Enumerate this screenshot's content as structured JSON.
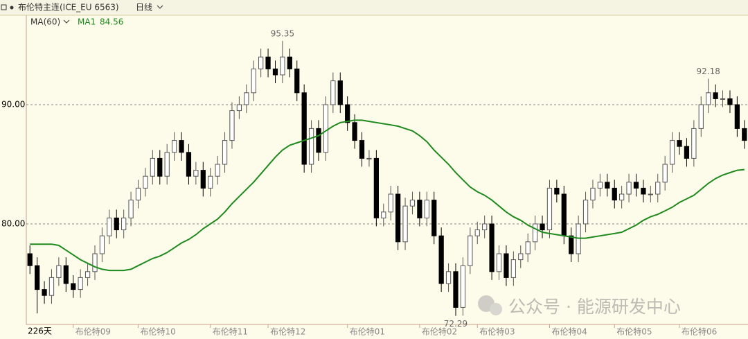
{
  "chart_data": {
    "type": "candlestick",
    "title": "布伦特主连(ICE_EU 6563)",
    "period": "日线",
    "indicator": "MA(60)",
    "bar_count": "226天",
    "watermark": "公众号 · 能源研发中心",
    "up_color": "#ffffff",
    "down_color": "#000000",
    "edge_color": "#555555",
    "grid": true,
    "ylim": [
      71.57,
      97.5
    ],
    "yticks": [
      {
        "value": 80,
        "label": "80.00"
      },
      {
        "value": 90,
        "label": "90.00"
      }
    ],
    "categories": [
      null,
      null,
      null,
      null,
      null,
      null,
      "布伦特09",
      null,
      null,
      null,
      null,
      null,
      null,
      null,
      null,
      "布伦特10",
      null,
      null,
      null,
      null,
      null,
      null,
      null,
      null,
      null,
      "布伦特11",
      null,
      null,
      null,
      null,
      null,
      null,
      null,
      "布伦特12",
      null,
      null,
      null,
      null,
      null,
      null,
      null,
      null,
      null,
      null,
      "布伦特01",
      null,
      null,
      null,
      null,
      null,
      null,
      null,
      null,
      null,
      "布伦特02",
      null,
      null,
      null,
      null,
      null,
      null,
      null,
      "布伦特03",
      null,
      null,
      null,
      null,
      null,
      null,
      null,
      null,
      null,
      "布伦特04",
      null,
      null,
      null,
      null,
      null,
      null,
      null,
      null,
      "布伦特05",
      null,
      null,
      null,
      null,
      null,
      null,
      null,
      null,
      "布伦特06",
      null,
      null,
      null,
      null,
      null,
      null,
      null,
      null,
      null
    ],
    "open": [
      77.5,
      76.5,
      74.5,
      74,
      75.5,
      76.5,
      75,
      74.5,
      75.5,
      76,
      77.5,
      79,
      80.5,
      79.5,
      80.5,
      82,
      83,
      84,
      85.5,
      84,
      86,
      87,
      86,
      84,
      84.5,
      83,
      84,
      85,
      87,
      89.5,
      90,
      91,
      93,
      94,
      93,
      92.5,
      94,
      93,
      91,
      85,
      88,
      86,
      90,
      92,
      90,
      88.5,
      87,
      85.5,
      85.5,
      80.5,
      81,
      82.5,
      78.5,
      81.5,
      82,
      80.5,
      82,
      79,
      75,
      76,
      73,
      76.5,
      79,
      79.5,
      80,
      76,
      77.5,
      75.5,
      77,
      77.5,
      78.5,
      80,
      79.5,
      83,
      82.5,
      79,
      77.5,
      80,
      82,
      83,
      83.5,
      83,
      82,
      82.5,
      83.5,
      83,
      82.5,
      82.5,
      83.5,
      85,
      87,
      86.5,
      85.5,
      88,
      90,
      91,
      90.5,
      90.5,
      90,
      88
    ],
    "high": [
      78.2,
      77.2,
      75.2,
      76.2,
      77.2,
      77.2,
      75.7,
      76.2,
      76.7,
      78.2,
      79.7,
      81.2,
      81.2,
      81.2,
      82.7,
      83.7,
      84.7,
      86.2,
      86.2,
      86.7,
      87.7,
      87.7,
      86.7,
      85.2,
      85.2,
      84.7,
      85.7,
      87.7,
      90.2,
      90.7,
      91.7,
      93.7,
      94.7,
      94.7,
      93.7,
      95.35,
      94.7,
      93.7,
      91.7,
      88.7,
      88.7,
      90.7,
      92.7,
      92.7,
      90.7,
      89.2,
      87.7,
      86.2,
      86.2,
      81.7,
      83.2,
      83.2,
      82.2,
      82.7,
      82.7,
      82.7,
      82.7,
      79.7,
      76.7,
      76.7,
      77.2,
      79.7,
      80.2,
      80.7,
      80.7,
      78.2,
      78.2,
      77.7,
      78.2,
      79.2,
      80.7,
      80.7,
      83.7,
      83.7,
      83.2,
      79.7,
      80.7,
      82.7,
      83.7,
      84.2,
      84.2,
      83.7,
      83.2,
      84.2,
      84.2,
      83.7,
      83.2,
      84.2,
      85.7,
      87.7,
      87.7,
      87.2,
      88.7,
      90.7,
      92.18,
      91.7,
      91.2,
      91.2,
      90.7,
      88.7
    ],
    "low": [
      75.8,
      72.5,
      73.3,
      73.3,
      74.8,
      74.3,
      73.8,
      73.8,
      74.8,
      75.3,
      76.8,
      78.3,
      78.8,
      78.8,
      79.8,
      81.3,
      82.3,
      83.3,
      83.3,
      83.3,
      85.3,
      85.3,
      83.3,
      83.3,
      82.3,
      82.3,
      83.3,
      84.3,
      86.3,
      88.8,
      89.3,
      90.3,
      92.3,
      92.3,
      91.8,
      91.8,
      92.3,
      90.3,
      84.3,
      84.3,
      85.3,
      85.3,
      89.3,
      89.3,
      87.8,
      86.3,
      84.8,
      84.8,
      79.8,
      79.8,
      80.3,
      77.8,
      77.8,
      80.8,
      79.8,
      79.8,
      78.3,
      74.3,
      74.3,
      72.29,
      72.3,
      75.8,
      78.3,
      78.8,
      75.3,
      75.3,
      74.8,
      74.8,
      76.3,
      76.8,
      77.8,
      78.8,
      78.8,
      81.8,
      78.3,
      76.8,
      76.8,
      79.3,
      81.3,
      82.3,
      82.3,
      81.3,
      81.3,
      81.8,
      82.3,
      81.8,
      81.8,
      81.8,
      82.8,
      84.3,
      85.8,
      84.8,
      84.8,
      87.3,
      89.3,
      89.8,
      89.8,
      89.3,
      87.3,
      86.3
    ],
    "close": [
      76.5,
      74.5,
      74,
      75.5,
      76.5,
      75,
      74.5,
      75.5,
      76,
      77.5,
      79,
      80.5,
      79.5,
      80.5,
      82,
      83,
      84,
      85.5,
      84,
      86,
      87,
      86,
      84,
      84.5,
      83,
      84,
      85,
      87,
      89.5,
      90,
      91,
      93,
      94,
      93,
      92.5,
      94,
      93,
      91,
      85,
      88,
      86,
      90,
      92,
      90,
      88.5,
      87,
      85.5,
      85.5,
      80.5,
      81,
      82.5,
      78.5,
      81.5,
      82,
      80.5,
      82,
      79,
      75,
      76,
      73,
      76.5,
      79,
      79.5,
      80,
      76,
      77.5,
      75.5,
      77,
      77.5,
      78.5,
      80,
      79.5,
      83,
      82.5,
      79,
      77.5,
      80,
      82,
      83,
      83.5,
      83,
      82,
      82.5,
      83.5,
      83,
      82.5,
      82.5,
      83.5,
      85,
      87,
      86.5,
      85.5,
      88,
      90,
      91,
      90.5,
      90.5,
      90,
      88,
      87
    ],
    "ma": {
      "name": "MA1",
      "color": "#1e8a1e",
      "values": [
        78.3,
        78.3,
        78.3,
        78.3,
        78.2,
        77.8,
        77.4,
        77.0,
        76.7,
        76.4,
        76.2,
        76.1,
        76.1,
        76.1,
        76.2,
        76.5,
        76.8,
        77.1,
        77.3,
        77.6,
        78.0,
        78.4,
        78.7,
        79.1,
        79.6,
        80.0,
        80.4,
        81.0,
        81.7,
        82.3,
        82.9,
        83.5,
        84.2,
        84.9,
        85.6,
        86.2,
        86.6,
        86.8,
        87.0,
        87.2,
        87.4,
        87.8,
        88.2,
        88.5,
        88.6,
        88.7,
        88.7,
        88.6,
        88.5,
        88.4,
        88.3,
        88.2,
        88.0,
        87.8,
        87.4,
        86.9,
        86.2,
        85.6,
        85.0,
        84.3,
        83.7,
        83.1,
        82.7,
        82.4,
        82.0,
        81.5,
        81.0,
        80.6,
        80.3,
        79.9,
        79.6,
        79.3,
        79.2,
        79.1,
        79.0,
        78.9,
        78.8,
        78.8,
        78.9,
        79.0,
        79.1,
        79.2,
        79.3,
        79.6,
        79.9,
        80.3,
        80.6,
        80.8,
        81.1,
        81.4,
        81.8,
        82.1,
        82.4,
        82.9,
        83.4,
        83.8,
        84.1,
        84.3,
        84.5,
        84.56
      ]
    }
  }
}
